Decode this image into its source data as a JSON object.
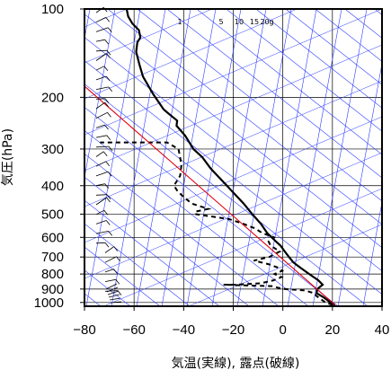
{
  "chart_data": {
    "type": "line",
    "chart_kind": "skew-T log-P aerological diagram",
    "title": "",
    "xlabel": "気温(実線), 露点(破線)",
    "ylabel": "気圧(hPa)",
    "xlim": [
      -80,
      40
    ],
    "ylim": [
      1030,
      100
    ],
    "y_scale": "log",
    "grid": true,
    "x_ticks": [
      -80,
      -60,
      -40,
      -20,
      0,
      20,
      40
    ],
    "x_tick_labels": [
      "−80",
      "−60",
      "−40",
      "−20",
      "0",
      "20",
      "40"
    ],
    "y_ticks": [
      100,
      200,
      300,
      400,
      500,
      600,
      700,
      800,
      900,
      1000
    ],
    "y_tick_labels": [
      "100",
      "200",
      "300",
      "400",
      "500",
      "600",
      "700",
      "800",
      "900",
      "1000"
    ],
    "mixing_ratio_labels": [
      "1",
      "5",
      "10",
      "15",
      "20g"
    ],
    "mixing_ratio_values": [
      1,
      5,
      10,
      15,
      20
    ],
    "series": [
      {
        "style": "solid",
        "color": "#000000",
        "points": [
          [
            21,
            1020
          ],
          [
            19,
            1000
          ],
          [
            16,
            960
          ],
          [
            13,
            930
          ],
          [
            13,
            900
          ],
          [
            15,
            870
          ],
          [
            13,
            840
          ],
          [
            9,
            800
          ],
          [
            5,
            760
          ],
          [
            2,
            730
          ],
          [
            0,
            700
          ],
          [
            -2,
            670
          ],
          [
            -4,
            640
          ],
          [
            -6,
            620
          ],
          [
            -10,
            580
          ],
          [
            -13,
            540
          ],
          [
            -17,
            500
          ],
          [
            -21,
            460
          ],
          [
            -26,
            420
          ],
          [
            -30,
            390
          ],
          [
            -36,
            350
          ],
          [
            -40,
            320
          ],
          [
            -44,
            300
          ],
          [
            -48,
            270
          ],
          [
            -52,
            250
          ],
          [
            -52,
            240
          ],
          [
            -55,
            230
          ],
          [
            -58,
            220
          ],
          [
            -63,
            195
          ],
          [
            -68,
            170
          ],
          [
            -70,
            155
          ],
          [
            -72,
            140
          ],
          [
            -72,
            130
          ],
          [
            -71,
            125
          ],
          [
            -72,
            118
          ],
          [
            -75,
            112
          ],
          [
            -77,
            106
          ],
          [
            -78,
            100
          ]
        ]
      },
      {
        "style": "dashed",
        "color": "#000000",
        "points": [
          [
            20,
            1020
          ],
          [
            17,
            1000
          ],
          [
            13,
            950
          ],
          [
            12,
            930
          ],
          [
            8,
            910
          ],
          [
            0,
            900
          ],
          [
            -3,
            890
          ],
          [
            -5,
            880
          ],
          [
            -15,
            875
          ],
          [
            -25,
            870
          ],
          [
            -20,
            870
          ],
          [
            -10,
            860
          ],
          [
            -5,
            840
          ],
          [
            -2,
            820
          ],
          [
            -5,
            800
          ],
          [
            -2,
            780
          ],
          [
            -4,
            760
          ],
          [
            -8,
            740
          ],
          [
            -14,
            720
          ],
          [
            -8,
            700
          ],
          [
            -4,
            670
          ],
          [
            -8,
            640
          ],
          [
            -9,
            620
          ],
          [
            -7,
            600
          ],
          [
            -12,
            580
          ],
          [
            -15,
            560
          ],
          [
            -20,
            540
          ],
          [
            -26,
            520
          ],
          [
            -40,
            500
          ],
          [
            -40,
            490
          ],
          [
            -35,
            480
          ],
          [
            -42,
            460
          ],
          [
            -45,
            440
          ],
          [
            -48,
            420
          ],
          [
            -50,
            400
          ],
          [
            -48,
            370
          ],
          [
            -48,
            340
          ],
          [
            -50,
            300
          ],
          [
            -55,
            285
          ],
          [
            -65,
            285
          ],
          [
            -75,
            285
          ],
          [
            -82,
            285
          ]
        ]
      },
      {
        "style": "solid",
        "color": "#e0000f",
        "points": [
          [
            21,
            1020
          ],
          [
            -100,
            160
          ]
        ]
      }
    ],
    "wind_barbs_profile": "column of wind barbs along left edge near x ≈ −75"
  }
}
